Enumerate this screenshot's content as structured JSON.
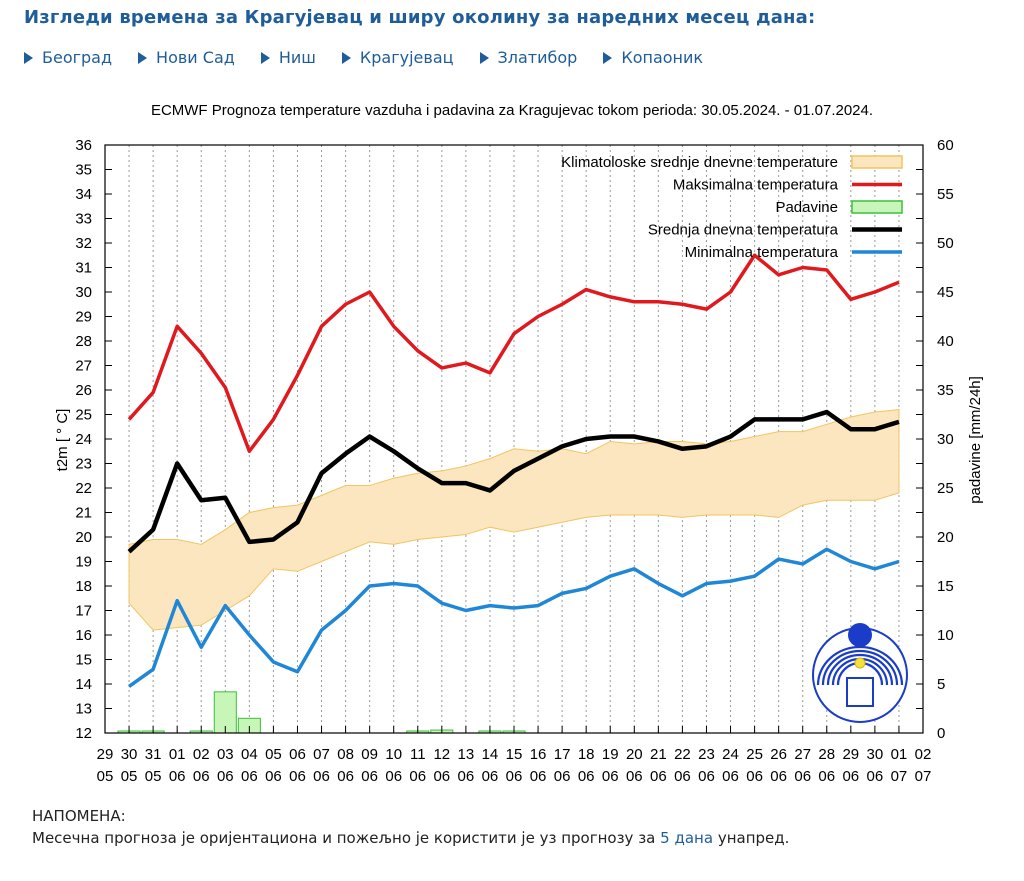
{
  "page": {
    "heading": "Изгледи времена за Крагујевац и ширу околину за наредних месец дана:"
  },
  "cities": [
    {
      "label": "Београд"
    },
    {
      "label": "Нови Сад"
    },
    {
      "label": "Ниш"
    },
    {
      "label": "Крагујевац"
    },
    {
      "label": "Златибор"
    },
    {
      "label": "Копаоник"
    }
  ],
  "note": {
    "title": "НАПОМЕНА:",
    "text_before": "Месечна прогноза је оријентациона и пожељно је користити је уз прогнозу за",
    "link": "5 дана",
    "text_after": "унапред."
  },
  "colors": {
    "max": "#e0191e",
    "mean": "#000000",
    "min": "#1f87d6",
    "clim_fill": "#fbe6c0",
    "clim_edge": "#f3c45f",
    "precip_fill": "#c8f5b8",
    "precip_edge": "#3cbf3c",
    "link": "#1e5c9a"
  },
  "chart_data": {
    "type": "line",
    "title": "ECMWF Prognoza temperature  vazduha i padavina za Kragujevac tokom perioda: 30.05.2024. - 01.07.2024.",
    "ylabel": "t2m [ ° C]",
    "y2label": "padavine [mm/24h]",
    "ylim": [
      12,
      36
    ],
    "y2lim": [
      0,
      60
    ],
    "grid": "vertical dashed",
    "legend_position": "top-right",
    "x_day": [
      "29",
      "30",
      "31",
      "01",
      "02",
      "03",
      "04",
      "05",
      "06",
      "07",
      "08",
      "09",
      "10",
      "11",
      "12",
      "13",
      "14",
      "15",
      "16",
      "17",
      "18",
      "19",
      "20",
      "21",
      "22",
      "23",
      "24",
      "25",
      "26",
      "27",
      "28",
      "29",
      "30",
      "01",
      "02"
    ],
    "x_month": [
      "05",
      "05",
      "05",
      "06",
      "06",
      "06",
      "06",
      "06",
      "06",
      "06",
      "06",
      "06",
      "06",
      "06",
      "06",
      "06",
      "06",
      "06",
      "06",
      "06",
      "06",
      "06",
      "06",
      "06",
      "06",
      "06",
      "06",
      "06",
      "06",
      "06",
      "06",
      "06",
      "06",
      "07",
      "07"
    ],
    "legend": [
      {
        "label": "Klimatoloske srednje dnevne temperature",
        "kind": "band"
      },
      {
        "label": "Maksimalna temperatura",
        "kind": "max"
      },
      {
        "label": "Padavine",
        "kind": "precip"
      },
      {
        "label": "Srednja dnevna temperatura",
        "kind": "mean"
      },
      {
        "label": "Minimalna temperatura",
        "kind": "min"
      }
    ],
    "series": [
      {
        "name": "Maksimalna temperatura",
        "key": "max",
        "values": [
          24.8,
          25.9,
          28.6,
          27.5,
          26.1,
          23.5,
          24.8,
          26.6,
          28.6,
          29.5,
          30.0,
          28.6,
          27.6,
          26.9,
          27.1,
          26.7,
          28.3,
          29.0,
          29.5,
          30.1,
          29.8,
          29.6,
          29.6,
          29.5,
          29.3,
          30.0,
          31.5,
          30.7,
          31.0,
          30.9,
          29.7,
          30.0,
          30.4
        ]
      },
      {
        "name": "Srednja dnevna temperatura",
        "key": "mean",
        "values": [
          19.4,
          20.3,
          23.0,
          21.5,
          21.6,
          19.8,
          19.9,
          20.6,
          22.6,
          23.4,
          24.1,
          23.5,
          22.8,
          22.2,
          22.2,
          21.9,
          22.7,
          23.2,
          23.7,
          24.0,
          24.1,
          24.1,
          23.9,
          23.6,
          23.7,
          24.1,
          24.8,
          24.8,
          24.8,
          25.1,
          24.4,
          24.4,
          24.7
        ]
      },
      {
        "name": "Minimalna temperatura",
        "key": "min",
        "values": [
          13.9,
          14.6,
          17.4,
          15.5,
          17.2,
          16.0,
          14.9,
          14.5,
          16.2,
          17.0,
          18.0,
          18.1,
          18.0,
          17.3,
          17.0,
          17.2,
          17.1,
          17.2,
          17.7,
          17.9,
          18.4,
          18.7,
          18.1,
          17.6,
          18.1,
          18.2,
          18.4,
          19.1,
          18.9,
          19.5,
          19.0,
          18.7,
          19.0
        ]
      },
      {
        "name": "Klimatoloske srednje dnevne temperature",
        "key": "clim",
        "upper": [
          19.7,
          19.9,
          19.9,
          19.7,
          20.3,
          21.0,
          21.2,
          21.3,
          21.7,
          22.1,
          22.1,
          22.4,
          22.6,
          22.7,
          22.9,
          23.2,
          23.6,
          23.5,
          23.6,
          23.4,
          23.9,
          23.8,
          23.9,
          23.9,
          23.8,
          23.9,
          24.1,
          24.3,
          24.3,
          24.6,
          24.9,
          25.1,
          25.2
        ],
        "lower": [
          17.3,
          16.2,
          16.3,
          16.4,
          17.0,
          17.6,
          18.7,
          18.6,
          19.0,
          19.4,
          19.8,
          19.7,
          19.9,
          20.0,
          20.1,
          20.4,
          20.2,
          20.4,
          20.6,
          20.8,
          20.9,
          20.9,
          20.9,
          20.8,
          20.9,
          20.9,
          20.9,
          20.8,
          21.3,
          21.5,
          21.5,
          21.5,
          21.8
        ]
      },
      {
        "name": "Padavine",
        "key": "precip",
        "values": [
          0.2,
          0.2,
          0,
          0.2,
          4.2,
          1.5,
          0,
          0,
          0,
          0,
          0,
          0,
          0.1,
          0.3,
          0,
          0.1,
          0.1,
          0,
          0,
          0,
          0,
          0,
          0,
          0,
          0,
          0,
          0,
          0,
          0,
          0,
          0,
          0,
          0
        ]
      }
    ]
  }
}
